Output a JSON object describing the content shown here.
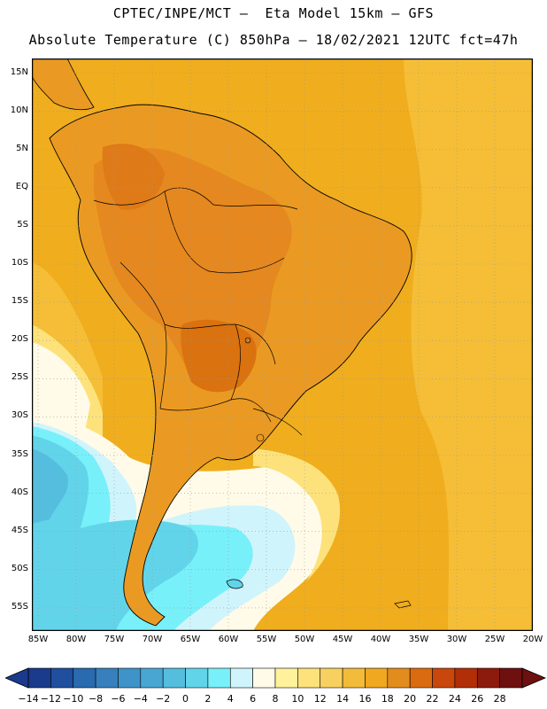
{
  "header": {
    "title_line1": "CPTEC/INPE/MCT –  Eta Model 15km – GFS",
    "title_line2": "Absolute Temperature (C) 850hPa – 18/02/2021 12UTC fct=47h"
  },
  "map": {
    "lat_labels": [
      "15N",
      "10N",
      "5N",
      "EQ",
      "5S",
      "10S",
      "15S",
      "20S",
      "25S",
      "30S",
      "35S",
      "40S",
      "45S",
      "50S",
      "55S"
    ],
    "lon_labels": [
      "85W",
      "80W",
      "75W",
      "70W",
      "65W",
      "60W",
      "55W",
      "50W",
      "45W",
      "40W",
      "35W",
      "30W",
      "25W",
      "20W"
    ],
    "colors": {
      "ocean": "#f2ab1a",
      "land_orange": "#e99a24",
      "hot": "#e07f1f",
      "frame": "#000000"
    }
  },
  "colorbar": {
    "labels": [
      "-14",
      "-12",
      "-10",
      "-8",
      "-6",
      "-4",
      "-2",
      "0",
      "2",
      "4",
      "6",
      "8",
      "10",
      "12",
      "14",
      "16",
      "18",
      "20",
      "22",
      "24",
      "26",
      "28"
    ],
    "colors": [
      "#1a3a8c",
      "#1f4f9e",
      "#2a6aae",
      "#3780bd",
      "#3f93c8",
      "#49a6d3",
      "#55bede",
      "#62d4ea",
      "#78f0fa",
      "#d0f4fc",
      "#fffbe8",
      "#fff29a",
      "#fde27c",
      "#f8d060",
      "#f2bb3a",
      "#efa820",
      "#e38c1e",
      "#db6b10",
      "#c9470c",
      "#b12e06",
      "#8c1b0e",
      "#6e1010"
    ]
  }
}
